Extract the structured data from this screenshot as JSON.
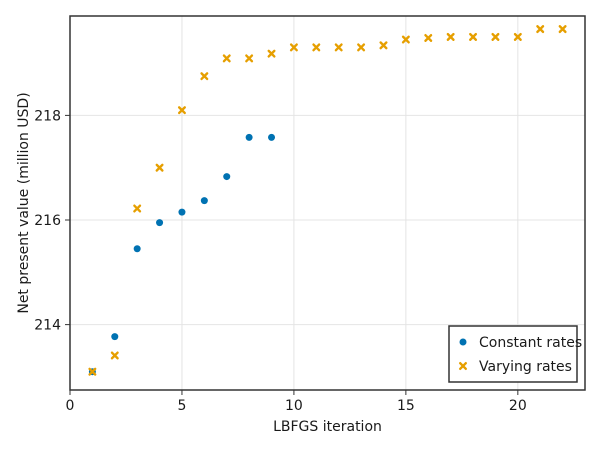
{
  "chart_data": {
    "type": "scatter",
    "title": "",
    "xlabel": "LBFGS iteration",
    "ylabel": "Net present value (million USD)",
    "xlim": [
      0,
      23
    ],
    "ylim": [
      212.75,
      219.9
    ],
    "x_ticks": [
      0,
      5,
      10,
      15,
      20
    ],
    "y_ticks": [
      214,
      216,
      218
    ],
    "grid": true,
    "legend_position": "bottom-right",
    "series": [
      {
        "name": "Constant rates",
        "marker": "circle",
        "color": "#0072b2",
        "points": [
          {
            "x": 1,
            "y": 213.1
          },
          {
            "x": 2,
            "y": 213.77
          },
          {
            "x": 3,
            "y": 215.45
          },
          {
            "x": 4,
            "y": 215.95
          },
          {
            "x": 5,
            "y": 216.15
          },
          {
            "x": 6,
            "y": 216.37
          },
          {
            "x": 7,
            "y": 216.83
          },
          {
            "x": 8,
            "y": 217.58
          },
          {
            "x": 9,
            "y": 217.58
          }
        ]
      },
      {
        "name": "Varying rates",
        "marker": "x",
        "color": "#e69f00",
        "points": [
          {
            "x": 1,
            "y": 213.1
          },
          {
            "x": 2,
            "y": 213.41
          },
          {
            "x": 3,
            "y": 216.22
          },
          {
            "x": 4,
            "y": 217.0
          },
          {
            "x": 5,
            "y": 218.1
          },
          {
            "x": 6,
            "y": 218.75
          },
          {
            "x": 7,
            "y": 219.09
          },
          {
            "x": 8,
            "y": 219.09
          },
          {
            "x": 9,
            "y": 219.18
          },
          {
            "x": 10,
            "y": 219.3
          },
          {
            "x": 11,
            "y": 219.3
          },
          {
            "x": 12,
            "y": 219.3
          },
          {
            "x": 13,
            "y": 219.3
          },
          {
            "x": 14,
            "y": 219.34
          },
          {
            "x": 15,
            "y": 219.45
          },
          {
            "x": 16,
            "y": 219.48
          },
          {
            "x": 17,
            "y": 219.5
          },
          {
            "x": 18,
            "y": 219.5
          },
          {
            "x": 19,
            "y": 219.5
          },
          {
            "x": 20,
            "y": 219.5
          },
          {
            "x": 21,
            "y": 219.65
          },
          {
            "x": 22,
            "y": 219.65
          }
        ]
      }
    ]
  }
}
